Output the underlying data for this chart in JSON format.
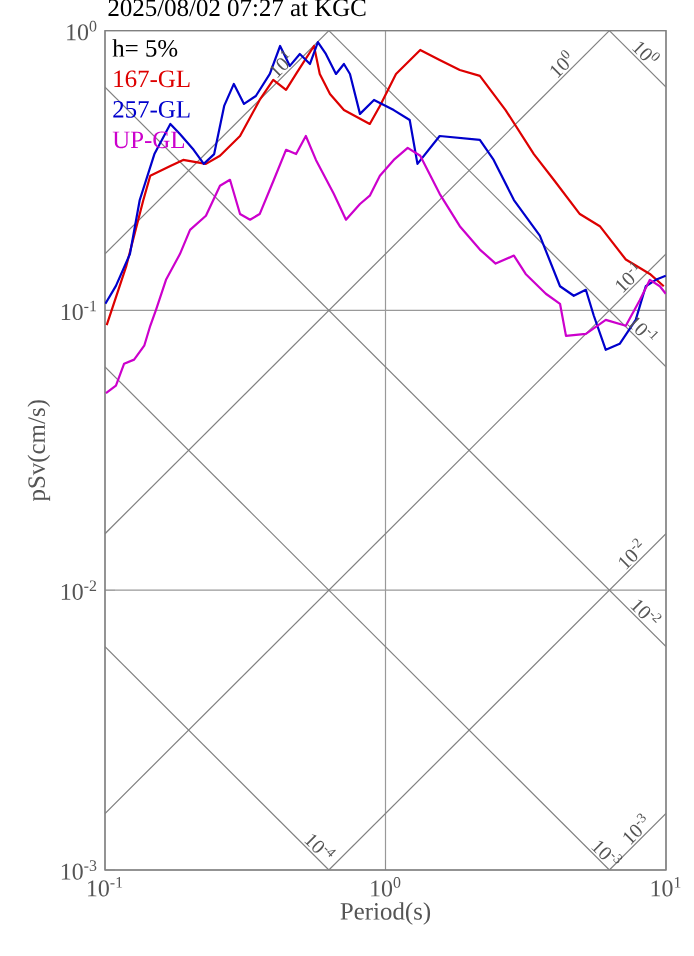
{
  "chart_data": {
    "type": "line",
    "title": "2025/08/02 07:27 at KGC",
    "xlabel": "Period(s)",
    "ylabel": "pSv(cm/s)",
    "log": "xy",
    "grid": true,
    "legend": "top left",
    "xlim": [
      0.1,
      10
    ],
    "ylim": [
      0.001,
      1
    ],
    "xticks": [
      {
        "value": 0.1,
        "label": "10$^{-1}$"
      },
      {
        "value": 1,
        "label": "10$^{0}$"
      },
      {
        "value": 10,
        "label": "10$^{1}$"
      }
    ],
    "yticks": [
      {
        "value": 0.001,
        "label": "10$^{-3}$"
      },
      {
        "value": 0.01,
        "label": "10$^{-2}$"
      },
      {
        "value": 0.1,
        "label": "10$^{-1}$"
      },
      {
        "value": 1,
        "label": "10$^{0}$"
      }
    ],
    "annotations": [
      "h= 5%",
      {
        "text": "10$^{0}$",
        "x": 8,
        "y": 0.785
      },
      {
        "text": "10$^{0}$",
        "x": 4.5,
        "y": 0.716
      },
      {
        "text": "10$^{1}$",
        "x": 0.45,
        "y": 0.716
      },
      {
        "text": "10$^{-1}$",
        "x": 7.8,
        "y": 0.124
      },
      {
        "text": "10$^{-1}$",
        "x": 7.8,
        "y": 0.0805
      },
      {
        "text": "10$^{-2}$",
        "x": 8,
        "y": 0.0127
      },
      {
        "text": "10$^{-2}$",
        "x": 8,
        "y": 0.00785
      },
      {
        "text": "10$^{-4}$",
        "x": 0.55,
        "y": 0.00114
      },
      {
        "text": "10$^{-3}$",
        "x": 5.8,
        "y": 0.00108
      },
      {
        "text": "10$^{-3}$",
        "x": 8.3,
        "y": 0.00132
      }
    ],
    "series": [
      {
        "color": "#808080",
        "x": [
          6.283,
          10
        ],
        "values": [
          1,
          0.6283
        ]
      },
      {
        "color": "#808080",
        "x": [
          0.6283,
          10
        ],
        "values": [
          1,
          0.06283
        ]
      },
      {
        "color": "#808080",
        "x": [
          0.1,
          10
        ],
        "values": [
          0.6283,
          0.006283
        ]
      },
      {
        "color": "#808080",
        "x": [
          0.1,
          6.283
        ],
        "values": [
          0.06283,
          0.001
        ]
      },
      {
        "color": "#808080",
        "x": [
          0.1,
          0.6283
        ],
        "values": [
          0.006283,
          0.001
        ]
      },
      {
        "color": "#808080",
        "x": [
          0.1,
          0.6283
        ],
        "values": [
          0.1592,
          1
        ]
      },
      {
        "color": "#808080",
        "x": [
          0.1,
          6.283
        ],
        "values": [
          0.01592,
          1
        ]
      },
      {
        "color": "#808080",
        "x": [
          0.1,
          10
        ],
        "values": [
          0.001592,
          0.1592
        ]
      },
      {
        "color": "#808080",
        "x": [
          0.6283,
          10
        ],
        "values": [
          0.001,
          0.01592
        ]
      },
      {
        "color": "#808080",
        "x": [
          6.283,
          10
        ],
        "values": [
          0.001,
          0.001592
        ]
      },
      {
        "name": "167-GL",
        "color": "#dd0000",
        "x": [
          0.1014,
          0.119,
          0.137,
          0.145,
          0.171,
          0.19,
          0.229,
          0.257,
          0.303,
          0.356,
          0.398,
          0.442,
          0.48,
          0.556,
          0.583,
          0.634,
          0.711,
          0.879,
          0.955,
          1.09,
          1.33,
          1.56,
          1.84,
          2.17,
          2.68,
          3.38,
          3.98,
          4.93,
          5.81,
          7.19,
          8.76,
          9.82
        ],
        "values": [
          0.0886,
          0.1436,
          0.248,
          0.303,
          0.328,
          0.345,
          0.334,
          0.357,
          0.42,
          0.565,
          0.667,
          0.614,
          0.7,
          0.881,
          0.7,
          0.594,
          0.52,
          0.464,
          0.538,
          0.7,
          0.853,
          0.785,
          0.723,
          0.689,
          0.52,
          0.362,
          0.293,
          0.221,
          0.2,
          0.152,
          0.135,
          0.122
        ]
      },
      {
        "name": "257-GL",
        "color": "#0000cc",
        "x": [
          0.1003,
          0.1094,
          0.1227,
          0.133,
          0.15,
          0.171,
          0.185,
          0.207,
          0.225,
          0.245,
          0.266,
          0.288,
          0.313,
          0.345,
          0.387,
          0.421,
          0.456,
          0.495,
          0.538,
          0.574,
          0.613,
          0.666,
          0.711,
          0.747,
          0.811,
          0.91,
          1.07,
          1.22,
          1.3,
          1.56,
          2.17,
          2.43,
          2.87,
          3.55,
          4.19,
          4.69,
          5.18,
          5.53,
          6.1,
          6.84,
          7.8,
          8.47,
          9.2,
          9.98
        ],
        "values": [
          0.1056,
          0.1224,
          0.159,
          0.248,
          0.362,
          0.464,
          0.427,
          0.375,
          0.334,
          0.362,
          0.538,
          0.645,
          0.547,
          0.584,
          0.7,
          0.881,
          0.748,
          0.825,
          0.76,
          0.91,
          0.825,
          0.7,
          0.76,
          0.7,
          0.504,
          0.565,
          0.52,
          0.479,
          0.334,
          0.42,
          0.407,
          0.345,
          0.248,
          0.185,
          0.122,
          0.1128,
          0.1185,
          0.0957,
          0.0723,
          0.076,
          0.0925,
          0.122,
          0.1286,
          0.133
        ]
      },
      {
        "name": "UP-GL",
        "color": "#cc00cc",
        "x": [
          0.1008,
          0.1094,
          0.117,
          0.127,
          0.138,
          0.145,
          0.152,
          0.165,
          0.185,
          0.201,
          0.229,
          0.257,
          0.279,
          0.303,
          0.329,
          0.356,
          0.4,
          0.442,
          0.48,
          0.52,
          0.565,
          0.654,
          0.723,
          0.811,
          0.879,
          0.955,
          1.07,
          1.2,
          1.33,
          1.56,
          1.84,
          2.17,
          2.47,
          2.87,
          3.16,
          3.73,
          4.19,
          4.4,
          5.18,
          6.1,
          7.19,
          8.07,
          8.76,
          9.51,
          9.98
        ],
        "values": [
          0.0506,
          0.0538,
          0.0645,
          0.0667,
          0.0748,
          0.0881,
          0.1005,
          0.1286,
          0.159,
          0.194,
          0.218,
          0.279,
          0.293,
          0.221,
          0.211,
          0.221,
          0.293,
          0.375,
          0.362,
          0.42,
          0.345,
          0.261,
          0.211,
          0.24,
          0.257,
          0.303,
          0.345,
          0.381,
          0.357,
          0.261,
          0.2,
          0.165,
          0.147,
          0.157,
          0.135,
          0.1147,
          0.1056,
          0.0811,
          0.0825,
          0.0925,
          0.0881,
          0.109,
          0.1286,
          0.122,
          0.1147
        ]
      }
    ]
  }
}
